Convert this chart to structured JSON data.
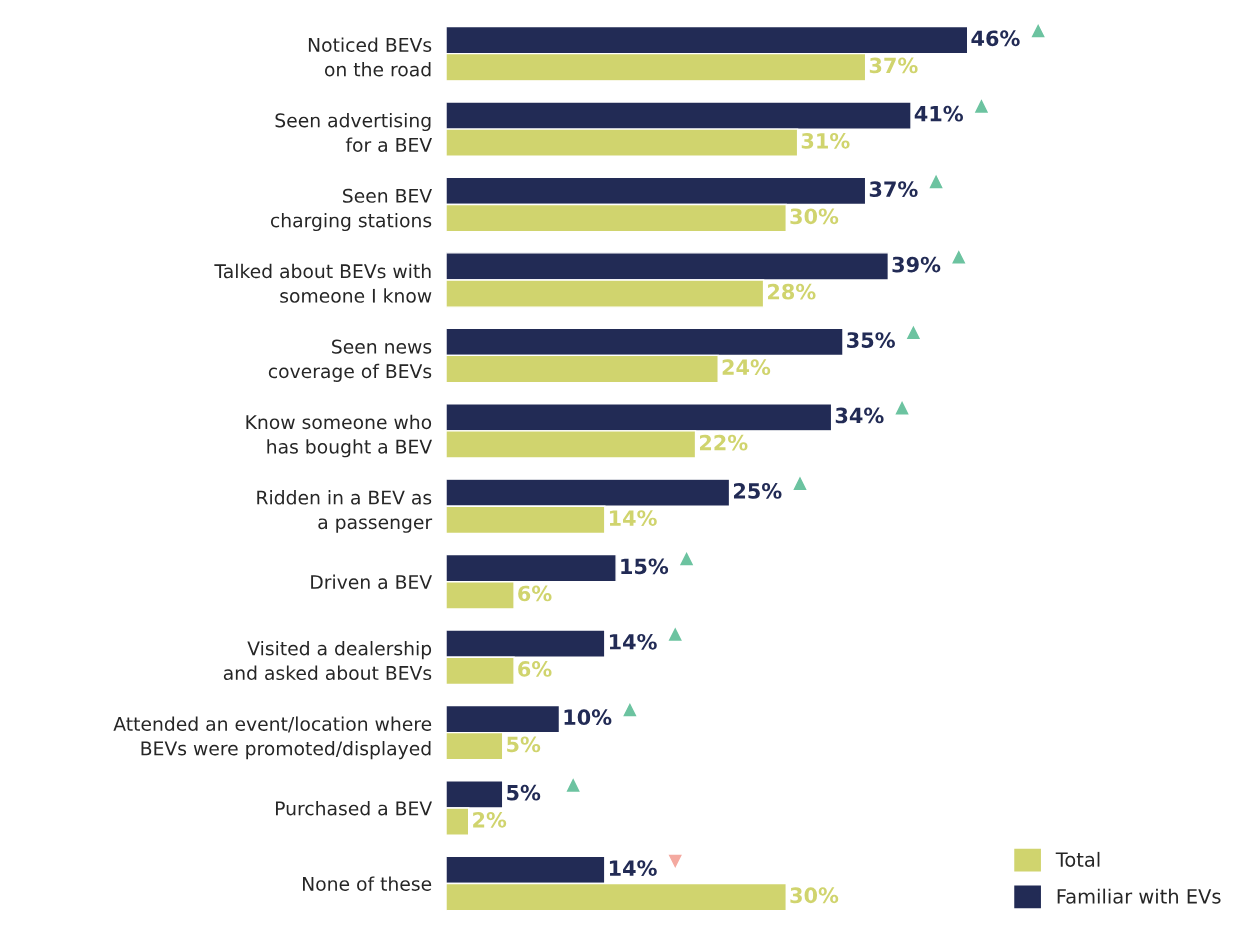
{
  "chart_data": {
    "type": "bar",
    "orientation": "horizontal",
    "categories": [
      "Noticed BEVs\non the road",
      "Seen advertising\nfor a BEV",
      "Seen BEV\ncharging stations",
      "Talked about BEVs with\nsomeone I know",
      "Seen news\ncoverage of BEVs",
      "Know someone who\nhas bought a BEV",
      "Ridden in a BEV as\na passenger",
      "Driven a BEV",
      "Visited a dealership\nand asked about BEVs",
      "Attended an event/location where\nBEVs were promoted/displayed",
      "Purchased a BEV",
      "None of these"
    ],
    "series": [
      {
        "name": "Familiar with EVs",
        "color": "#222b55",
        "values": [
          46,
          41,
          37,
          39,
          35,
          34,
          25,
          15,
          14,
          10,
          5,
          14
        ],
        "value_labels": [
          "46%",
          "41%",
          "37%",
          "39%",
          "35%",
          "34%",
          "25%",
          "15%",
          "14%",
          "10%",
          "5%",
          "14%"
        ]
      },
      {
        "name": "Total",
        "color": "#d0d46e",
        "values": [
          37,
          31,
          30,
          28,
          24,
          22,
          14,
          6,
          6,
          5,
          2,
          30
        ],
        "value_labels": [
          "37%",
          "31%",
          "30%",
          "28%",
          "24%",
          "22%",
          "14%",
          "6%",
          "6%",
          "5%",
          "2%",
          "30%"
        ]
      }
    ],
    "legend": "bottom right"
  }
}
